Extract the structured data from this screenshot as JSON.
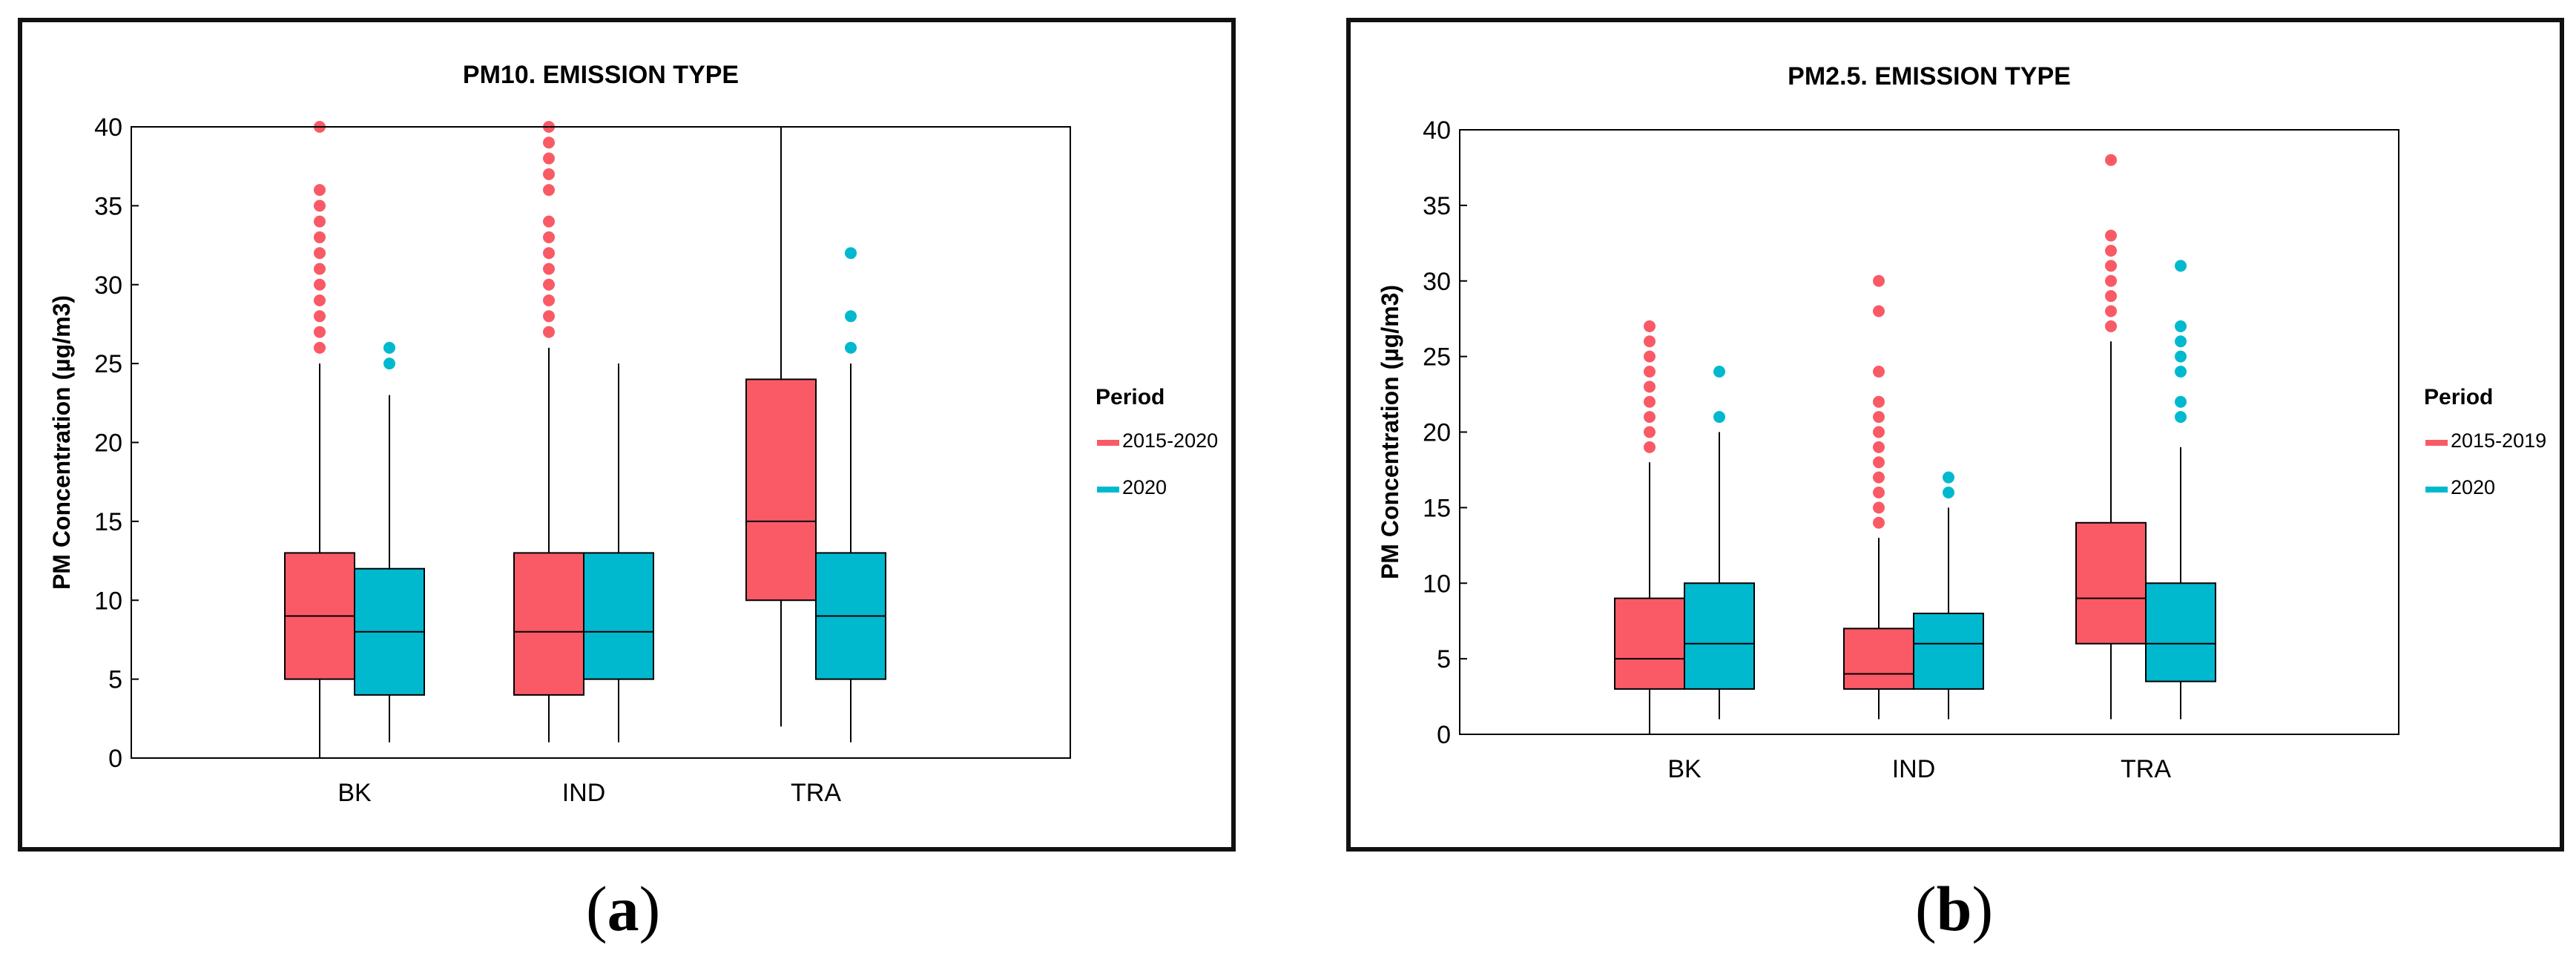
{
  "colors": {
    "series_1": "#f95a66",
    "series_2": "#00b9cf",
    "axis": "#000000"
  },
  "panels": [
    {
      "label_open": "(",
      "label_letter": "a",
      "label_close": ")"
    },
    {
      "label_open": "(",
      "label_letter": "b",
      "label_close": ")"
    }
  ],
  "chart_data": [
    {
      "type": "box",
      "title": "PM10. EMISSION TYPE",
      "xlabel": "",
      "ylabel": "PM Concentration (µg/m3)",
      "ylim": [
        0,
        40
      ],
      "yticks": [
        0,
        5,
        10,
        15,
        20,
        25,
        30,
        35,
        40
      ],
      "categories": [
        "BK",
        "IND",
        "TRA"
      ],
      "legend": {
        "title": "Period",
        "position": "right"
      },
      "series": [
        {
          "name": "2015-2020",
          "color": "#f95a66",
          "boxes": [
            {
              "category": "BK",
              "min": 0,
              "q1": 5,
              "median": 9,
              "q3": 13,
              "max": 25,
              "outliers": [
                26,
                27,
                28,
                29,
                30,
                31,
                32,
                33,
                34,
                35,
                36,
                40
              ]
            },
            {
              "category": "IND",
              "min": 1,
              "q1": 4,
              "median": 8,
              "q3": 13,
              "max": 26,
              "outliers": [
                27,
                28,
                29,
                30,
                31,
                32,
                33,
                34,
                36,
                37,
                38,
                39,
                40
              ]
            },
            {
              "category": "TRA",
              "min": 2,
              "q1": 10,
              "median": 15,
              "q3": 24,
              "max": 40,
              "outliers": []
            }
          ]
        },
        {
          "name": "2020",
          "color": "#00b9cf",
          "boxes": [
            {
              "category": "BK",
              "min": 1,
              "q1": 4,
              "median": 8,
              "q3": 12,
              "max": 23,
              "outliers": [
                25,
                26
              ]
            },
            {
              "category": "IND",
              "min": 1,
              "q1": 5,
              "median": 8,
              "q3": 13,
              "max": 25,
              "outliers": []
            },
            {
              "category": "TRA",
              "min": 1,
              "q1": 5,
              "median": 9,
              "q3": 13,
              "max": 25,
              "outliers": [
                26,
                28,
                32
              ]
            }
          ]
        }
      ]
    },
    {
      "type": "box",
      "title": "PM2.5. EMISSION TYPE",
      "xlabel": "",
      "ylabel": "PM Concentration (µg/m3)",
      "ylim": [
        0,
        40
      ],
      "yticks": [
        0,
        5,
        10,
        15,
        20,
        25,
        30,
        35,
        40
      ],
      "categories": [
        "BK",
        "IND",
        "TRA"
      ],
      "legend": {
        "title": "Period",
        "position": "right"
      },
      "series": [
        {
          "name": "2015-2019",
          "color": "#f95a66",
          "boxes": [
            {
              "category": "BK",
              "min": 0,
              "q1": 3,
              "median": 5,
              "q3": 9,
              "max": 18,
              "outliers": [
                19,
                20,
                21,
                22,
                23,
                24,
                25,
                26,
                27
              ]
            },
            {
              "category": "IND",
              "min": 1,
              "q1": 3,
              "median": 4,
              "q3": 7,
              "max": 13,
              "outliers": [
                14,
                15,
                16,
                17,
                18,
                19,
                20,
                21,
                22,
                24,
                28,
                30
              ]
            },
            {
              "category": "TRA",
              "min": 1,
              "q1": 6,
              "median": 9,
              "q3": 14,
              "max": 26,
              "outliers": [
                27,
                28,
                29,
                30,
                31,
                32,
                33,
                38
              ]
            }
          ]
        },
        {
          "name": "2020",
          "color": "#00b9cf",
          "boxes": [
            {
              "category": "BK",
              "min": 1,
              "q1": 3,
              "median": 6,
              "q3": 10,
              "max": 20,
              "outliers": [
                21,
                24
              ]
            },
            {
              "category": "IND",
              "min": 1,
              "q1": 3,
              "median": 6,
              "q3": 8,
              "max": 15,
              "outliers": [
                16,
                17
              ]
            },
            {
              "category": "TRA",
              "min": 1,
              "q1": 3.5,
              "median": 6,
              "q3": 10,
              "max": 19,
              "outliers": [
                21,
                22,
                24,
                25,
                26,
                27,
                31
              ]
            }
          ]
        }
      ]
    }
  ]
}
